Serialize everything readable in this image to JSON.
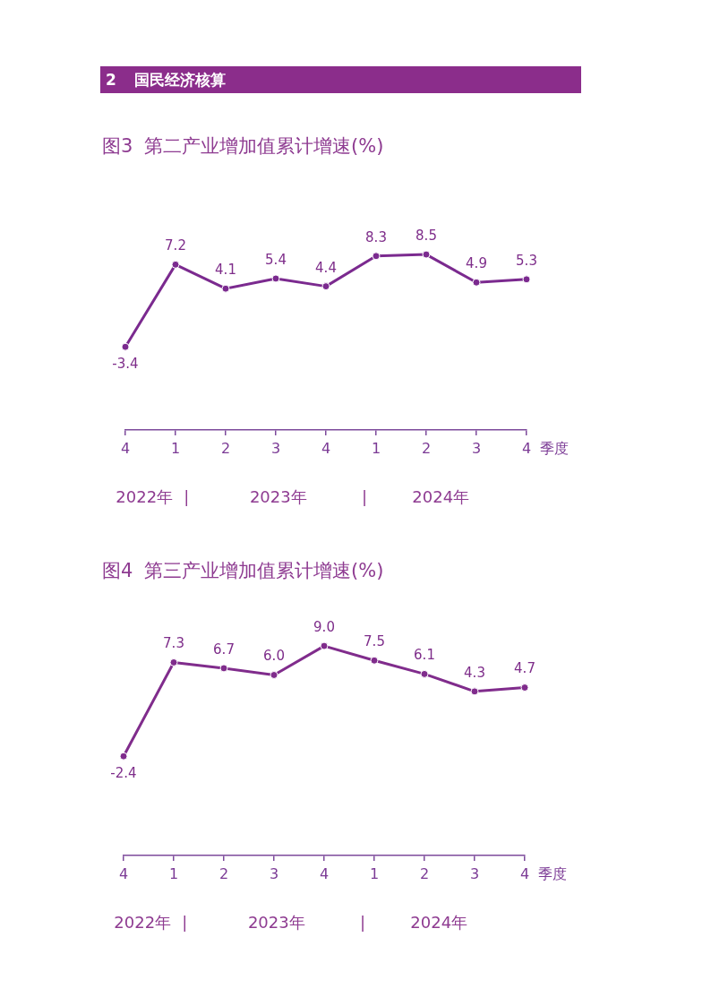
{
  "chart_data": [
    {
      "type": "other",
      "title": "2 国民经济核算"
    },
    {
      "type": "line",
      "title": "图3 第二产业增加值累计增速(%)",
      "xlabel": "季度",
      "categories": [
        "4",
        "1",
        "2",
        "3",
        "4",
        "1",
        "2",
        "3",
        "4"
      ],
      "values": [
        -3.4,
        7.2,
        4.1,
        5.4,
        4.4,
        8.3,
        8.5,
        4.9,
        5.3
      ],
      "color": "#7b2a8f",
      "marker": "circle",
      "line_style": "solid",
      "data_labels": true,
      "annotations": [
        "2022年",
        "|",
        "2023年",
        "|",
        "2024年"
      ]
    },
    {
      "type": "line",
      "title": "图4 第三产业增加值累计增速(%)",
      "xlabel": "季度",
      "categories": [
        "4",
        "1",
        "2",
        "3",
        "4",
        "1",
        "2",
        "3",
        "4"
      ],
      "values": [
        -2.4,
        7.3,
        6.7,
        6.0,
        9.0,
        7.5,
        6.1,
        4.3,
        4.7
      ],
      "value_labels": [
        "-2.4",
        "7.3",
        "6.7",
        "6.0",
        "9.0",
        "7.5",
        "6.1",
        "4.3",
        "4.7"
      ],
      "color": "#802c8c",
      "marker": "circle",
      "line_style": "solid",
      "annotations": [
        "2022年",
        "|",
        "2023年",
        "|",
        "2024年"
      ]
    }
  ]
}
